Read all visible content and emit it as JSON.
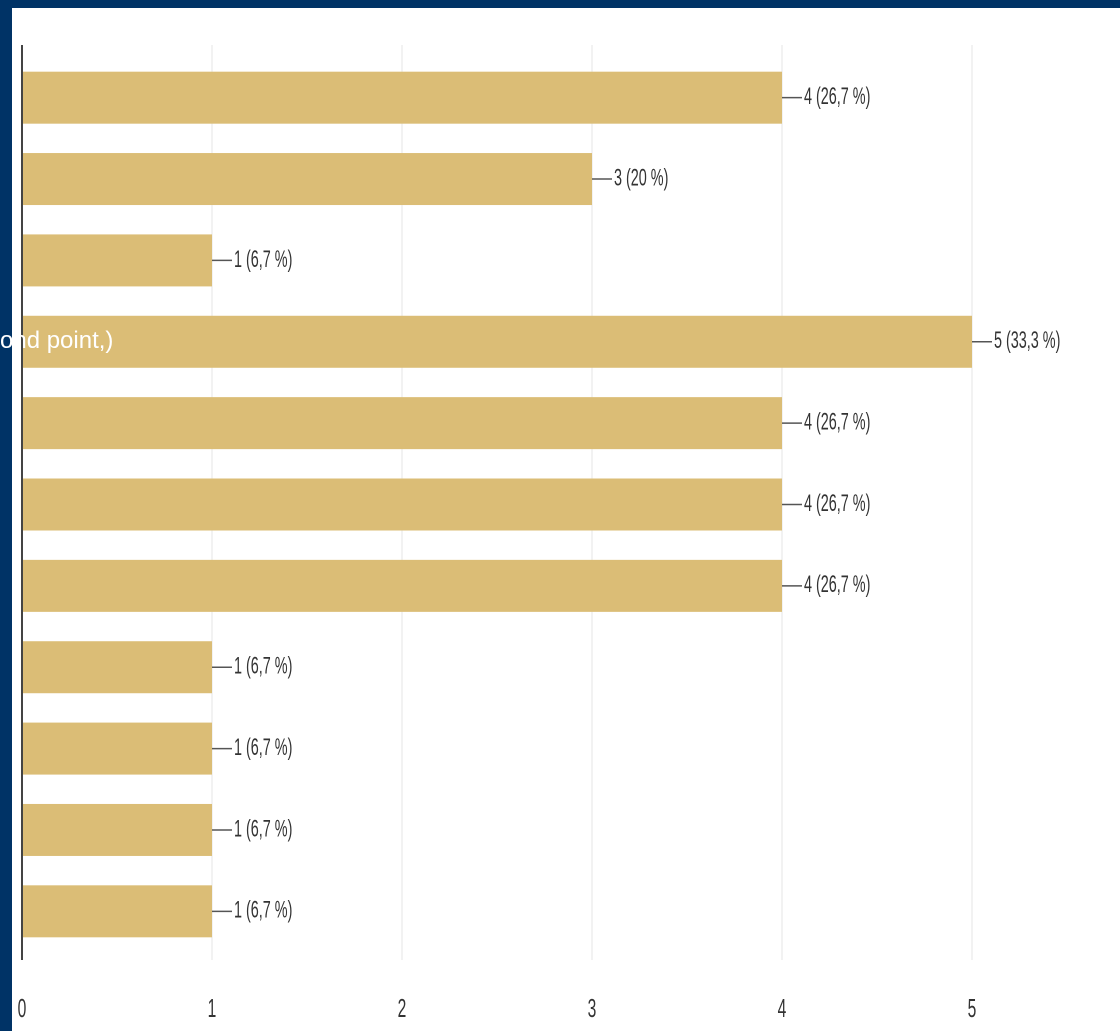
{
  "chart_data": {
    "type": "bar",
    "orientation": "horizontal",
    "categories": [
      null,
      null,
      null,
      "ond point,)",
      null,
      null,
      null,
      null,
      null,
      null,
      null
    ],
    "values": [
      4,
      3,
      1,
      5,
      4,
      4,
      4,
      1,
      1,
      1,
      1
    ],
    "value_labels": [
      "4 (26,7 %)",
      "3 (20 %)",
      "1 (6,7 %)",
      "5 (33,3 %)",
      "4 (26,7 %)",
      "4 (26,7 %)",
      "4 (26,7 %)",
      "1 (6,7 %)",
      "1 (6,7 %)",
      "1 (6,7 %)",
      "1 (6,7 %)"
    ],
    "color": "#dbbd76",
    "xlim": [
      0,
      5
    ],
    "xticks": [
      0,
      1,
      2,
      3,
      4,
      5
    ],
    "grid": true
  }
}
